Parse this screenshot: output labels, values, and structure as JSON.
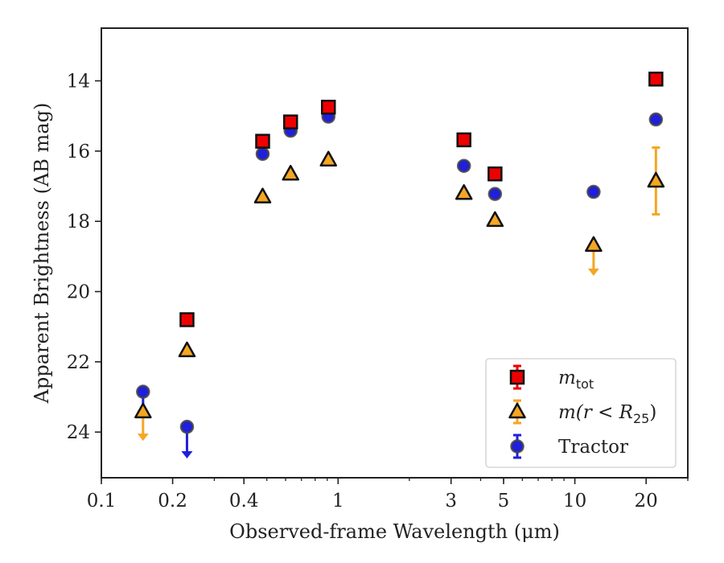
{
  "chart_data": {
    "type": "scatter",
    "xlabel": "Observed-frame Wavelength (μm)",
    "ylabel": "Apparent Brightness (AB mag)",
    "x_scale": "log",
    "xlim": [
      0.1,
      30
    ],
    "ylim": [
      25.3,
      12.5
    ],
    "y_inverted": true,
    "xticks": [
      {
        "value": 0.1,
        "label": "0.1"
      },
      {
        "value": 0.2,
        "label": "0.2"
      },
      {
        "value": 0.4,
        "label": "0.4"
      },
      {
        "value": 1,
        "label": "1"
      },
      {
        "value": 3,
        "label": "3"
      },
      {
        "value": 5,
        "label": "5"
      },
      {
        "value": 10,
        "label": "10"
      },
      {
        "value": 20,
        "label": "20"
      }
    ],
    "yticks": [
      {
        "value": 14,
        "label": "14"
      },
      {
        "value": 16,
        "label": "16"
      },
      {
        "value": 18,
        "label": "18"
      },
      {
        "value": 20,
        "label": "20"
      },
      {
        "value": 22,
        "label": "22"
      },
      {
        "value": 24,
        "label": "24"
      }
    ],
    "legend": {
      "placement": "lower-right",
      "entries": [
        {
          "series": 0,
          "label_main": "m",
          "label_sub": "tot",
          "label_tail": ""
        },
        {
          "series": 1,
          "label_main": "m(r < R",
          "label_sub": "25",
          "label_tail": ")"
        },
        {
          "series": 2,
          "label_main": "Tractor",
          "label_sub": "",
          "label_tail": ""
        }
      ]
    },
    "series": [
      {
        "name": "m_tot",
        "marker": "square",
        "color": "#ee0000",
        "points": [
          {
            "x": 0.23,
            "y": 20.8
          },
          {
            "x": 0.48,
            "y": 15.72
          },
          {
            "x": 0.63,
            "y": 15.17
          },
          {
            "x": 0.91,
            "y": 14.75
          },
          {
            "x": 3.4,
            "y": 15.68
          },
          {
            "x": 4.6,
            "y": 16.65
          },
          {
            "x": 22,
            "y": 13.95
          }
        ]
      },
      {
        "name": "m(r < R25)",
        "marker": "triangle",
        "color": "#f5a623",
        "points": [
          {
            "x": 0.15,
            "y": 23.42,
            "upper_limit": true,
            "arrow_to": 24.25
          },
          {
            "x": 0.23,
            "y": 21.68
          },
          {
            "x": 0.48,
            "y": 17.3
          },
          {
            "x": 0.63,
            "y": 16.65
          },
          {
            "x": 0.91,
            "y": 16.25
          },
          {
            "x": 3.4,
            "y": 17.2
          },
          {
            "x": 4.6,
            "y": 17.97
          },
          {
            "x": 12,
            "y": 18.68,
            "upper_limit": true,
            "arrow_to": 19.55
          },
          {
            "x": 22,
            "y": 16.85,
            "err_low": 15.9,
            "err_high": 17.8
          }
        ]
      },
      {
        "name": "Tractor",
        "marker": "circle",
        "color": "#1f1fdd",
        "points": [
          {
            "x": 0.15,
            "y": 22.85,
            "upper_limit": true,
            "arrow_to": 23.6
          },
          {
            "x": 0.23,
            "y": 23.85,
            "upper_limit": true,
            "arrow_to": 24.75
          },
          {
            "x": 0.48,
            "y": 16.08
          },
          {
            "x": 0.63,
            "y": 15.42
          },
          {
            "x": 0.91,
            "y": 15.02
          },
          {
            "x": 3.4,
            "y": 16.42
          },
          {
            "x": 4.6,
            "y": 17.22
          },
          {
            "x": 12,
            "y": 17.16
          },
          {
            "x": 22,
            "y": 15.1
          }
        ]
      }
    ],
    "grid": false
  }
}
